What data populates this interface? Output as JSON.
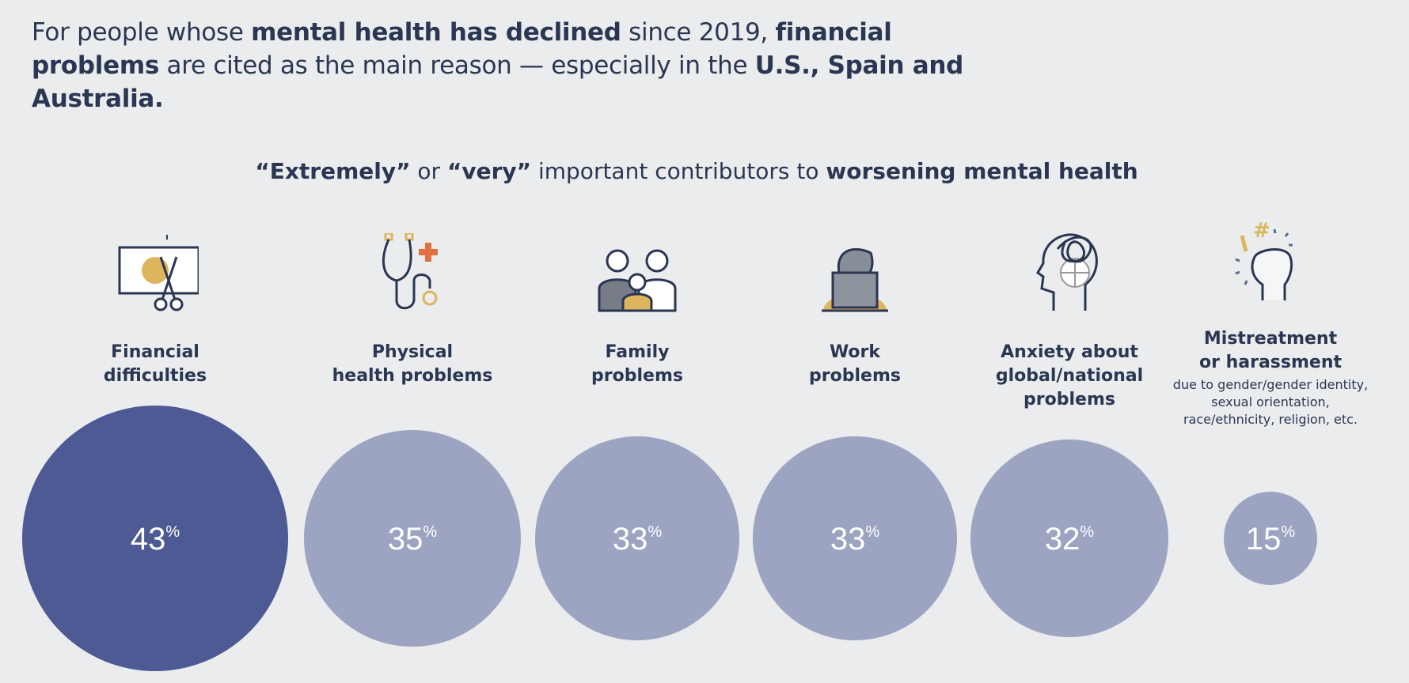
{
  "headline": {
    "parts": [
      {
        "t": "For people whose ",
        "b": false
      },
      {
        "t": "mental health has declined",
        "b": true
      },
      {
        "t": " since 2019, ",
        "b": false
      },
      {
        "t": "financial problems",
        "b": true
      },
      {
        "t": " are cited as the main reason — especially in the ",
        "b": false
      },
      {
        "t": "U.S., Spain and Australia.",
        "b": true
      }
    ]
  },
  "subtitle": {
    "parts": [
      {
        "t": "“Extremely”",
        "b": true
      },
      {
        "t": " or ",
        "b": false
      },
      {
        "t": "“very”",
        "b": true
      },
      {
        "t": " important contributors to ",
        "b": false
      },
      {
        "t": "worsening mental health",
        "b": true
      }
    ]
  },
  "colors": {
    "background": "#eaecee",
    "text": "#2a3652",
    "highlight": "#4d5a94",
    "other": "#9da4c2",
    "accent_gold": "#dcb55c",
    "accent_orange": "#e0703f"
  },
  "chart_data": {
    "type": "bubble",
    "unit": "%",
    "categories": [
      {
        "label_lines": [
          "Financial",
          "difficulties"
        ],
        "note": "",
        "value": 43,
        "icon": "money-scissors-icon",
        "highlight": true
      },
      {
        "label_lines": [
          "Physical",
          "health problems"
        ],
        "note": "",
        "value": 35,
        "icon": "stethoscope-icon",
        "highlight": false
      },
      {
        "label_lines": [
          "Family",
          "problems"
        ],
        "note": "",
        "value": 33,
        "icon": "family-icon",
        "highlight": false
      },
      {
        "label_lines": [
          "Work",
          "problems"
        ],
        "note": "",
        "value": 33,
        "icon": "laptop-worker-icon",
        "highlight": false
      },
      {
        "label_lines": [
          "Anxiety about",
          "global/national",
          "problems"
        ],
        "note": "",
        "value": 32,
        "icon": "tangled-head-icon",
        "highlight": false
      },
      {
        "label_lines": [
          "Mistreatment",
          "or harassment"
        ],
        "note": "due to gender/gender identity, sexual orientation, race/ethnicity, religion, etc.",
        "value": 15,
        "icon": "raised-fist-icon",
        "highlight": false
      }
    ]
  }
}
